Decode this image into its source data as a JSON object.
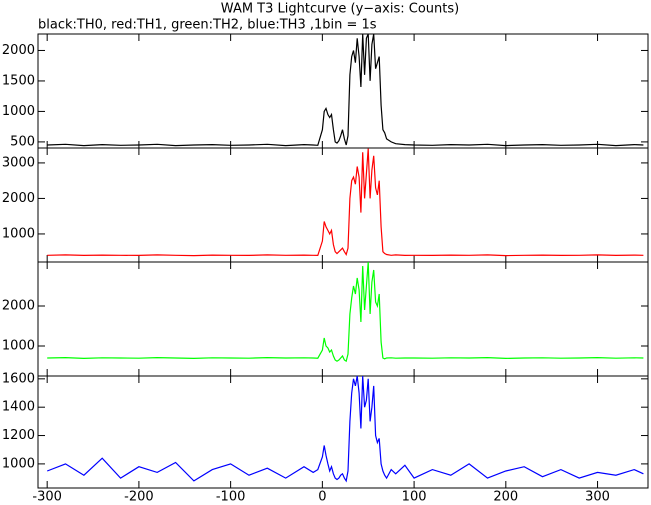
{
  "chart_data": [
    {
      "type": "line",
      "title": "WAM T3 Lightcurve (y−axis: Counts)",
      "subtitle": "black:TH0, red:TH1, green:TH2, blue:TH3 ,1bin = 1s",
      "xlim": [
        -310,
        355
      ],
      "ylim": [
        400,
        2270
      ],
      "yticks": [
        500,
        1000,
        1500,
        2000
      ],
      "x": [
        -300,
        -280,
        -260,
        -240,
        -220,
        -200,
        -180,
        -160,
        -140,
        -120,
        -100,
        -80,
        -60,
        -40,
        -20,
        -10,
        -5,
        0,
        2,
        4,
        6,
        8,
        10,
        12,
        14,
        16,
        18,
        20,
        22,
        24,
        26,
        28,
        30,
        32,
        34,
        36,
        38,
        40,
        42,
        44,
        46,
        48,
        50,
        52,
        54,
        56,
        58,
        60,
        62,
        64,
        66,
        68,
        70,
        75,
        80,
        90,
        100,
        120,
        140,
        160,
        180,
        200,
        220,
        240,
        260,
        280,
        300,
        320,
        340,
        350
      ],
      "series": [
        {
          "color": "#000000",
          "values": [
            450,
            460,
            440,
            455,
            445,
            450,
            460,
            440,
            450,
            455,
            445,
            450,
            460,
            440,
            455,
            450,
            445,
            700,
            1000,
            1050,
            950,
            900,
            950,
            700,
            500,
            480,
            520,
            600,
            700,
            550,
            450,
            600,
            1600,
            1900,
            2000,
            1800,
            2200,
            1900,
            1400,
            2270,
            1600,
            2200,
            2270,
            1500,
            2100,
            2270,
            1700,
            1800,
            1900,
            1100,
            700,
            650,
            550,
            500,
            470,
            455,
            450,
            445,
            455,
            450,
            460,
            440,
            450,
            455,
            445,
            450,
            460,
            440,
            455,
            450
          ]
        }
      ]
    },
    {
      "type": "line",
      "xlim": [
        -310,
        355
      ],
      "ylim": [
        210,
        3420
      ],
      "yticks": [
        1000,
        2000,
        3000
      ],
      "x": [
        -300,
        -280,
        -260,
        -240,
        -220,
        -200,
        -180,
        -160,
        -140,
        -120,
        -100,
        -80,
        -60,
        -40,
        -20,
        -10,
        -5,
        0,
        2,
        4,
        6,
        8,
        10,
        12,
        14,
        16,
        18,
        20,
        22,
        24,
        26,
        28,
        30,
        32,
        34,
        36,
        38,
        40,
        42,
        44,
        46,
        48,
        50,
        52,
        54,
        56,
        58,
        60,
        62,
        64,
        66,
        68,
        70,
        75,
        80,
        90,
        100,
        120,
        140,
        160,
        180,
        200,
        220,
        240,
        260,
        280,
        300,
        320,
        340,
        350
      ],
      "series": [
        {
          "color": "#ff0000",
          "values": [
            400,
            410,
            395,
            405,
            400,
            395,
            410,
            400,
            390,
            405,
            400,
            395,
            410,
            400,
            405,
            400,
            395,
            800,
            1350,
            1200,
            1100,
            1000,
            1100,
            700,
            500,
            450,
            500,
            550,
            600,
            500,
            420,
            600,
            2000,
            2500,
            2600,
            2400,
            2900,
            2600,
            1600,
            3300,
            2000,
            2700,
            3400,
            2000,
            2800,
            3200,
            2300,
            2100,
            2500,
            1200,
            500,
            450,
            420,
            400,
            410,
            395,
            400,
            395,
            405,
            400,
            410,
            390,
            400,
            405,
            395,
            400,
            410,
            395,
            405,
            400
          ]
        }
      ]
    },
    {
      "type": "line",
      "xlim": [
        -310,
        355
      ],
      "ylim": [
        250,
        3100
      ],
      "yticks": [
        1000,
        2000
      ],
      "x": [
        -300,
        -280,
        -260,
        -240,
        -220,
        -200,
        -180,
        -160,
        -140,
        -120,
        -100,
        -80,
        -60,
        -40,
        -20,
        -10,
        -5,
        0,
        2,
        4,
        6,
        8,
        10,
        12,
        14,
        16,
        18,
        20,
        22,
        24,
        26,
        28,
        30,
        32,
        34,
        36,
        38,
        40,
        42,
        44,
        46,
        48,
        50,
        52,
        54,
        56,
        58,
        60,
        62,
        64,
        66,
        68,
        70,
        75,
        80,
        90,
        100,
        120,
        140,
        160,
        180,
        200,
        220,
        240,
        260,
        280,
        300,
        320,
        340,
        350
      ],
      "series": [
        {
          "color": "#00ff00",
          "values": [
            700,
            710,
            690,
            705,
            700,
            695,
            710,
            700,
            690,
            705,
            700,
            695,
            710,
            700,
            705,
            700,
            695,
            900,
            1200,
            1000,
            950,
            850,
            900,
            750,
            650,
            620,
            650,
            700,
            750,
            650,
            620,
            800,
            1800,
            2200,
            2500,
            2300,
            2700,
            2400,
            1600,
            3000,
            1900,
            2500,
            3100,
            1800,
            2600,
            2900,
            2100,
            2000,
            2300,
            1100,
            700,
            680,
            700,
            705,
            695,
            700,
            700,
            695,
            705,
            700,
            710,
            690,
            700,
            705,
            695,
            700,
            710,
            695,
            705,
            700
          ]
        }
      ]
    },
    {
      "type": "line",
      "xlim": [
        -310,
        355
      ],
      "ylim": [
        830,
        1620
      ],
      "yticks": [
        1000,
        1200,
        1400,
        1600
      ],
      "xticks": [
        -300,
        -200,
        -100,
        0,
        100,
        200,
        300
      ],
      "x": [
        -300,
        -280,
        -260,
        -240,
        -220,
        -200,
        -180,
        -160,
        -140,
        -120,
        -100,
        -80,
        -60,
        -40,
        -20,
        -10,
        -5,
        0,
        2,
        4,
        6,
        8,
        10,
        12,
        14,
        16,
        18,
        20,
        22,
        24,
        26,
        28,
        30,
        32,
        34,
        36,
        38,
        40,
        42,
        44,
        46,
        48,
        50,
        52,
        54,
        56,
        58,
        60,
        62,
        64,
        66,
        68,
        70,
        75,
        80,
        90,
        100,
        120,
        140,
        160,
        180,
        200,
        220,
        240,
        260,
        280,
        300,
        320,
        340,
        350
      ],
      "series": [
        {
          "color": "#0000ff",
          "values": [
            950,
            1000,
            920,
            1040,
            900,
            980,
            940,
            1010,
            880,
            960,
            1000,
            920,
            970,
            900,
            980,
            940,
            960,
            1050,
            1130,
            1060,
            1000,
            950,
            980,
            930,
            900,
            890,
            900,
            920,
            930,
            900,
            880,
            950,
            1300,
            1500,
            1600,
            1550,
            1620,
            1500,
            1250,
            1620,
            1400,
            1450,
            1600,
            1300,
            1400,
            1550,
            1200,
            1150,
            1180,
            1000,
            950,
            920,
            900,
            960,
            930,
            990,
            900,
            960,
            920,
            1000,
            900,
            950,
            980,
            910,
            960,
            900,
            940,
            920,
            960,
            930
          ]
        }
      ]
    }
  ]
}
